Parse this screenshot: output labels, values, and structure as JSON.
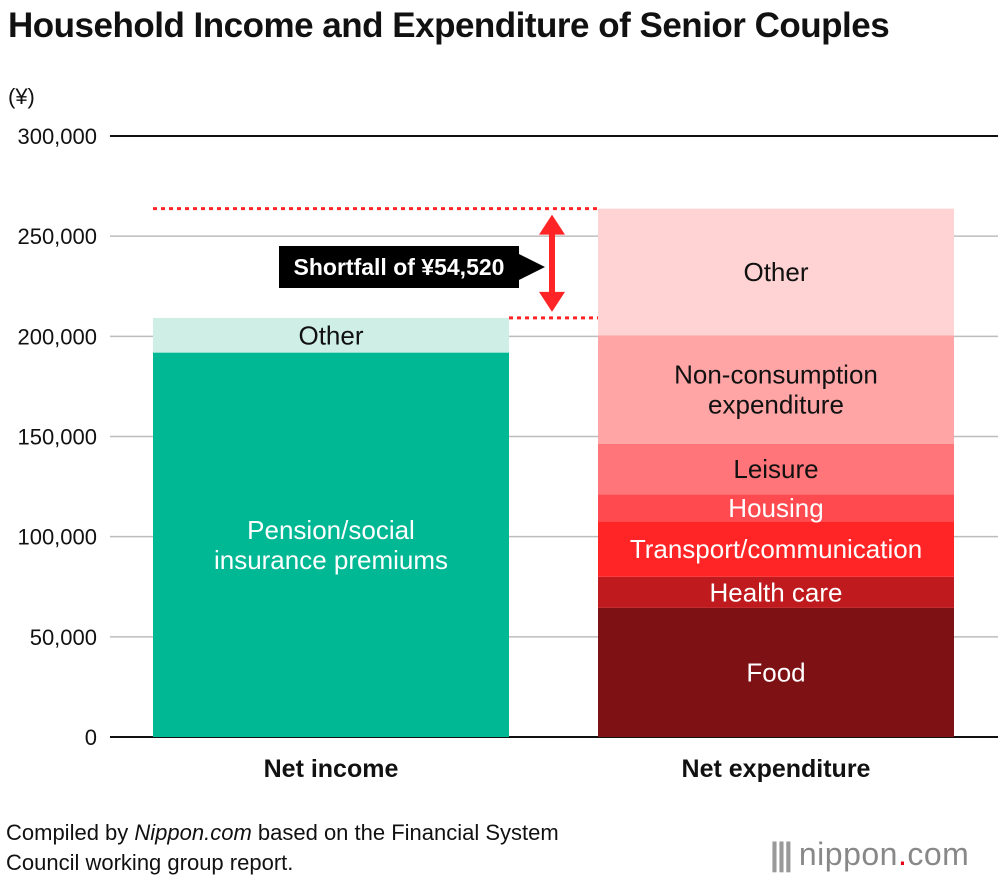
{
  "header": {
    "title": "Household Income and Expenditure of Senior Couples"
  },
  "colors": {
    "income_main": "#00B894",
    "income_other": "#CFEFE6",
    "exp_food": "#7E1114",
    "exp_health": "#BF1A1E",
    "exp_transport": "#FF2526",
    "exp_housing": "#FF4A50",
    "exp_leisure": "#FF7579",
    "exp_nonconsumption": "#FFA5A6",
    "exp_other": "#FFD3D3",
    "accent_red": "#FF2526"
  },
  "chart_data": {
    "type": "bar",
    "stacked": true,
    "unit_label": "(¥)",
    "ylim": [
      0,
      300000
    ],
    "yticks": [
      0,
      50000,
      100000,
      150000,
      200000,
      250000,
      300000
    ],
    "ytick_labels": [
      "0",
      "50,000",
      "100,000",
      "150,000",
      "200,000",
      "250,000",
      "300,000"
    ],
    "categories": [
      "Net income",
      "Net expenditure"
    ],
    "bars": [
      {
        "category": "Net income",
        "segments": [
          {
            "label": "Pension/social insurance premiums",
            "lines": [
              "Pension/social",
              "insurance premiums"
            ],
            "value": 191880,
            "color_key": "income_main",
            "text_color": "#ffffff"
          },
          {
            "label": "Other",
            "lines": [
              "Other"
            ],
            "value": 17318,
            "color_key": "income_other",
            "text_color": "#111111"
          }
        ]
      },
      {
        "category": "Net expenditure",
        "segments": [
          {
            "label": "Food",
            "lines": [
              "Food"
            ],
            "value": 64444,
            "color_key": "exp_food",
            "text_color": "#ffffff"
          },
          {
            "label": "Health care",
            "lines": [
              "Health care"
            ],
            "value": 15512,
            "color_key": "exp_health",
            "text_color": "#ffffff"
          },
          {
            "label": "Transport/communication",
            "lines": [
              "Transport/communication"
            ],
            "value": 27576,
            "color_key": "exp_transport",
            "text_color": "#ffffff"
          },
          {
            "label": "Housing",
            "lines": [
              "Housing"
            ],
            "value": 13656,
            "color_key": "exp_housing",
            "text_color": "#ffffff"
          },
          {
            "label": "Leisure",
            "lines": [
              "Leisure"
            ],
            "value": 25077,
            "color_key": "exp_leisure",
            "text_color": "#111111"
          },
          {
            "label": "Non-consumption expenditure",
            "lines": [
              "Non-consumption",
              "expenditure"
            ],
            "value": 54270,
            "color_key": "exp_nonconsumption",
            "text_color": "#111111"
          },
          {
            "label": "Other",
            "lines": [
              "Other"
            ],
            "value": 63183,
            "color_key": "exp_other",
            "text_color": "#111111"
          }
        ]
      }
    ],
    "annotation": {
      "text": "Shortfall of ¥54,520",
      "value": 54520,
      "from": 209198,
      "to": 263718
    }
  },
  "footer": {
    "source_line1": "Compiled by ",
    "source_italic": "Nippon.com",
    "source_line1_rest": " based on the Financial System",
    "source_line2": "Council working group report.",
    "logo_text": "nippon",
    "logo_dot": ".",
    "logo_suffix": "com"
  }
}
